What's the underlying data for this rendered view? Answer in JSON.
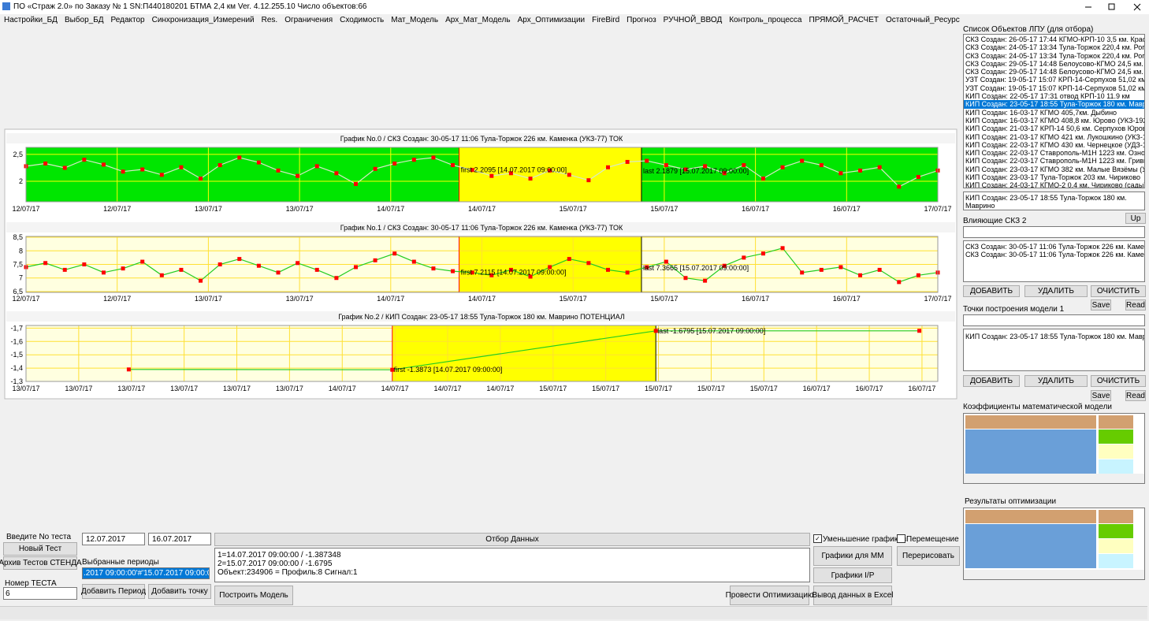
{
  "window": {
    "title": "ПО «Страж 2.0» по Заказу № 1 SN:П440180201 БТМА 2,4 км Ver. 4.12.255.10 Число объектов:66"
  },
  "menu": [
    "Настройки_БД",
    "Выбор_БД",
    "Редактор",
    "Синхронизация_Измерений",
    "Res.",
    "Ограничения",
    "Сходимость",
    "Мат_Модель",
    "Арх_Мат_Модель",
    "Арх_Оптимизации",
    "FireBird",
    "Прогноз",
    "РУЧНОЙ_ВВОД",
    "Контроль_процесса",
    "ПРЯМОЙ_РАСЧЕТ",
    "Остаточный_Ресурс"
  ],
  "chart_data": [
    {
      "type": "line",
      "title": "График No.0 / СКЗ Создан: 30-05-17 11:06 Тула-Торжок 226 км. Каменка (УКЗ-77) ТОК",
      "background": "#00e600",
      "grid_color": "#ffff00",
      "line_color": "#d8e8c8",
      "color": "#ff0000",
      "xlim": [
        0,
        120
      ],
      "xticks": [
        {
          "value": 0,
          "label": "12/07/17"
        },
        {
          "value": 12,
          "label": "12/07/17"
        },
        {
          "value": 24,
          "label": "13/07/17"
        },
        {
          "value": 36,
          "label": "13/07/17"
        },
        {
          "value": 48,
          "label": "14/07/17"
        },
        {
          "value": 60,
          "label": "14/07/17"
        },
        {
          "value": 72,
          "label": "15/07/17"
        },
        {
          "value": 84,
          "label": "15/07/17"
        },
        {
          "value": 96,
          "label": "16/07/17"
        },
        {
          "value": 108,
          "label": "16/07/17"
        },
        {
          "value": 120,
          "label": "17/07/17"
        }
      ],
      "ylim": [
        1.62,
        2.63
      ],
      "yticks": [
        {
          "value": 2.5,
          "label": "2,5"
        },
        2
      ],
      "highlight": {
        "range": [
          57,
          81
        ],
        "color": "#ffff00"
      },
      "values": [
        2.28,
        2.33,
        2.25,
        2.4,
        2.31,
        2.18,
        2.22,
        2.12,
        2.26,
        2.05,
        2.3,
        2.44,
        2.35,
        2.2,
        2.1,
        2.28,
        2.15,
        1.95,
        2.23,
        2.33,
        2.4,
        2.44,
        2.3,
        2.21,
        2.1,
        2.15,
        2.05,
        2.2,
        2.12,
        2.02,
        2.26,
        2.36,
        2.38,
        2.3,
        2.22,
        2.28,
        2.15,
        2.3,
        2.05,
        2.26,
        2.38,
        2.3,
        2.15,
        2.2,
        2.26,
        1.9,
        2.08,
        2.2
      ],
      "annotations": [
        {
          "text": "first 2.2095 [14.07.2017 09:00:00]",
          "x": 57,
          "y": 2.2095
        },
        {
          "text": "last 2.1879 [15.07.2017 09:00:00]",
          "x": 81,
          "y": 2.1879
        }
      ]
    },
    {
      "type": "line",
      "title": "График No.1 / СКЗ Создан: 30-05-17 11:06 Тула-Торжок 226 км. Каменка (УКЗ-77) ТОК",
      "background": "#ffffe0",
      "grid_color": "#ffe033",
      "line_color": "#22cc22",
      "color": "#ff0000",
      "xlim": [
        0,
        120
      ],
      "xticks": [
        {
          "value": 0,
          "label": "12/07/17"
        },
        {
          "value": 12,
          "label": "12/07/17"
        },
        {
          "value": 24,
          "label": "13/07/17"
        },
        {
          "value": 36,
          "label": "13/07/17"
        },
        {
          "value": 48,
          "label": "14/07/17"
        },
        {
          "value": 60,
          "label": "14/07/17"
        },
        {
          "value": 72,
          "label": "15/07/17"
        },
        {
          "value": 84,
          "label": "15/07/17"
        },
        {
          "value": 96,
          "label": "16/07/17"
        },
        {
          "value": 108,
          "label": "16/07/17"
        },
        {
          "value": 120,
          "label": "17/07/17"
        }
      ],
      "ylim": [
        6.47,
        8.53
      ],
      "yticks": [
        {
          "value": 8.5,
          "label": "8,5"
        },
        8,
        {
          "value": 7.5,
          "label": "7,5"
        },
        7,
        {
          "value": 6.5,
          "label": "6,5"
        }
      ],
      "highlight": {
        "range": [
          57,
          81
        ],
        "color": "#ffff00"
      },
      "values": [
        7.4,
        7.55,
        7.3,
        7.5,
        7.2,
        7.35,
        7.6,
        7.1,
        7.3,
        6.9,
        7.5,
        7.7,
        7.45,
        7.2,
        7.55,
        7.3,
        7.0,
        7.4,
        7.65,
        7.9,
        7.6,
        7.35,
        7.25,
        7.2,
        7.1,
        7.3,
        7.05,
        7.4,
        7.7,
        7.55,
        7.3,
        7.2,
        7.4,
        7.6,
        7.0,
        6.9,
        7.45,
        7.75,
        7.9,
        8.1,
        7.2,
        7.3,
        7.4,
        7.1,
        7.3,
        6.85,
        7.1,
        7.2
      ],
      "annotations": [
        {
          "text": "first 7.2115 [14.07.2017 09:00:00]",
          "x": 57,
          "y": 7.2115
        },
        {
          "text": "last 7.3665 [15.07.2017 09:00:00]",
          "x": 81,
          "y": 7.3665
        }
      ]
    },
    {
      "type": "line",
      "title": "График No.2 / КИП Создан: 23-05-17 18:55 Тула-Торжок 180 км. Маврино ПОТЕНЦИАЛ",
      "background": "#ffffe0",
      "grid_color": "#ffe033",
      "line_color": "#22cc22",
      "color": "#ff0000",
      "xlim": [
        0,
        17.3
      ],
      "xticks": [
        {
          "value": 0,
          "label": "13/07/17"
        },
        {
          "value": 1,
          "label": "13/07/17"
        },
        {
          "value": 2,
          "label": "13/07/17"
        },
        {
          "value": 3,
          "label": "13/07/17"
        },
        {
          "value": 4,
          "label": "13/07/17"
        },
        {
          "value": 5,
          "label": "13/07/17"
        },
        {
          "value": 6,
          "label": "14/07/17"
        },
        {
          "value": 7,
          "label": "14/07/17"
        },
        {
          "value": 8,
          "label": "14/07/17"
        },
        {
          "value": 9,
          "label": "14/07/17"
        },
        {
          "value": 10,
          "label": "15/07/17"
        },
        {
          "value": 11,
          "label": "15/07/17"
        },
        {
          "value": 12,
          "label": "15/07/17"
        },
        {
          "value": 13,
          "label": "15/07/17"
        },
        {
          "value": 14,
          "label": "15/07/17"
        },
        {
          "value": 15,
          "label": "16/07/17"
        },
        {
          "value": 16,
          "label": "16/07/17"
        },
        {
          "value": 17,
          "label": "16/07/17"
        }
      ],
      "ylim": [
        -1.3,
        -1.72
      ],
      "yticks": [
        {
          "value": -1.7,
          "label": "-1,7"
        },
        {
          "value": -1.6,
          "label": "-1,6"
        },
        {
          "value": -1.5,
          "label": "-1,5"
        },
        {
          "value": -1.4,
          "label": "-1,4"
        },
        {
          "value": -1.3,
          "label": "-1,3"
        }
      ],
      "highlight": {
        "range": [
          6.95,
          11.95
        ],
        "color": "#ffff00"
      },
      "x": [
        1.95,
        6.95,
        11.95,
        16.95
      ],
      "values": [
        -1.39,
        -1.387348,
        -1.6795,
        -1.68
      ],
      "annotations": [
        {
          "text": "first -1.3873 [14.07.2017 09:00:00]",
          "x": 6.95,
          "y": -1.387348
        },
        {
          "text": "last -1.6795 [15.07.2017 09:00:00]",
          "x": 11.95,
          "y": -1.6795
        }
      ]
    }
  ],
  "right_panel": {
    "objects_label": "Список Объектов ЛПУ (для отбора)",
    "objects": [
      "СКЗ Создан: 26-05-17 17:44 КГМО-КРП-10 3,5 км. Крас",
      "СКЗ Создан: 24-05-17 13:34 Тула-Торжок 220,4 км. Рог",
      "СКЗ Создан: 24-05-17 13:34 Тула-Торжок 220,4 км. Рог",
      "СКЗ Создан: 29-05-17 14:48 Белоусово-КГМО 24,5 км. I",
      "СКЗ Создан: 29-05-17 14:48 Белоусово-КГМО 24,5 км. I",
      "УЗТ Создан: 19-05-17 15:07 КРП-14-Серпухов 51,02 км",
      "УЗТ Создан: 19-05-17 15:07 КРП-14-Серпухов 51,02 км",
      "КИП Создан: 22-05-17 17:31 отвод КРП-10 11.9 км",
      "КИП Создан: 23-05-17 18:55 Тула-Торжок 180 км. Маври",
      "КИП Создан: 16-03-17 КГМО 405,7км. Дыбино",
      "КИП Создан: 16-03-17 КГМО 408,8 км. Юрово (УКЗ-192",
      "КИП Создан: 21-03-17 КРП-14 50,6 км. Серпухов Юров",
      "КИП Создан: 21-03-17 КГМО 421 км. Лукошкино (УКЗ-1",
      "КИП Создан: 22-03-17 КГМО 430 км. Чернецкое (УДЗ-1",
      "КИП Создан: 22-03-17 Ставрополь-М1Н 1223 км. Ознобі",
      "КИП Создан: 22-03-17 Ставрополь-М1Н 1223 км. Гривн",
      "КИП Создан: 23-03-17 КГМО 382 км. Малые Вязёмы (УК",
      "КИП Создан: 23-03-17 Тула-Торжок 203 км. Чириково",
      "КИП Создан: 24-03-17 КГМО-2 0,4 км. Чириково (сады)"
    ],
    "selected": 8,
    "current_object": "КИП Создан: 23-05-17 18:55 Тула-Торжок 180 км. Маврино",
    "influencing_label": "Влияющие СКЗ 2",
    "up": "Up",
    "influencing": [
      "СКЗ Создан: 30-05-17 11:06 Тула-Торжок 226 км. Каменка",
      "СКЗ Создан: 30-05-17 11:06 Тула-Торжок 226 км. Каменка"
    ],
    "add": "ДОБАВИТЬ",
    "remove": "УДАЛИТЬ",
    "clear": "ОЧИСТИТЬ",
    "save": "Save",
    "read": "Read",
    "points_label": "Точки построения модели 1",
    "points": [
      "КИП Создан: 23-05-17 18:55 Тула-Торжок 180 км. Маврино"
    ],
    "coefficients_label": "Коэффициенты математической модели",
    "results_label": "Результаты оптимизации"
  },
  "bottom_panel": {
    "test_no_label": "Введите No теста",
    "new_test": "Новый Тест",
    "archive": "Архив Тестов СТЕНДА",
    "test_number_label": "Номер ТЕСТА",
    "test_number": "6",
    "date_from": "12.07.2017",
    "date_to": "16.07.2017",
    "periods_label": "Выбранные периоды",
    "period": ".2017 09:00:00'#'15.07.2017 09:00:00'",
    "add_period": "Добавить Период",
    "add_point": "Добавить точку",
    "select_data": "Отбор Данных",
    "log": [
      "1=14.07.2017 09:00:00 / -1.387348",
      "2=15.07.2017 09:00:00 / -1.6795",
      "Объект:234906 = Профиль:8 Сигнал:1"
    ],
    "build_model": "Построить Модель",
    "optimize": "Провести Оптимизацию",
    "shrink": "Уменьшение графиков",
    "move": "Перемещение",
    "mm_charts": "Графики для ММ",
    "redraw": "Перерисовать",
    "ip_charts": "Графики I/P",
    "excel": "Вывод данных в Excel"
  }
}
